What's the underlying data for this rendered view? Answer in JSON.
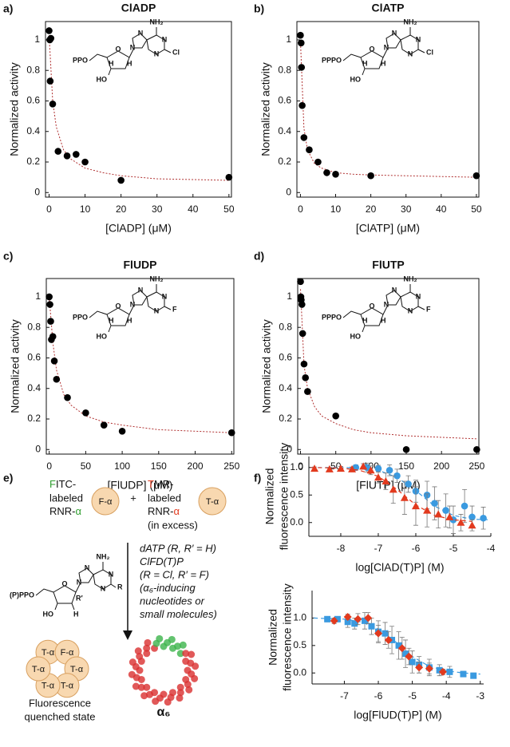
{
  "chart_data": [
    {
      "type": "scatter",
      "panel": "a)",
      "title": "ClADP",
      "xlabel": "[ClADP] (μM)",
      "ylabel": "Normalized activity",
      "xlim": [
        -1,
        50.7
      ],
      "ylim": [
        -0.03,
        1.12
      ],
      "xticks": [
        0,
        10,
        20,
        30,
        40,
        50
      ],
      "yticks": [
        0,
        0.2,
        0.4,
        0.6,
        0.8,
        1
      ],
      "structure": {
        "nh2": "NH₂",
        "n": "N",
        "x": "Cl",
        "phosphate": "PPO",
        "o": "O",
        "ho": "HO",
        "h": "H"
      },
      "series": [
        {
          "color": "#000000",
          "marker": "circle",
          "x": [
            0,
            0.2,
            0.5,
            0.3,
            1,
            2.5,
            5,
            7.5,
            10,
            20,
            50
          ],
          "values": [
            1.06,
            1.0,
            1.01,
            0.73,
            0.58,
            0.27,
            0.24,
            0.25,
            0.2,
            0.08,
            0.1
          ],
          "fit": {
            "color": "#b03030",
            "x": [
              0,
              1,
              2,
              4,
              6,
              10,
              15,
              20,
              30,
              40,
              50
            ],
            "values": [
              1.03,
              0.6,
              0.43,
              0.28,
              0.22,
              0.16,
              0.13,
              0.11,
              0.09,
              0.085,
              0.08
            ]
          }
        }
      ]
    },
    {
      "type": "scatter",
      "panel": "b)",
      "title": "ClATP",
      "xlabel": "[ClATP] (μM)",
      "ylabel": "Normalized activity",
      "xlim": [
        -1,
        50.7
      ],
      "ylim": [
        -0.03,
        1.12
      ],
      "xticks": [
        0,
        10,
        20,
        30,
        40,
        50
      ],
      "yticks": [
        0,
        0.2,
        0.4,
        0.6,
        0.8,
        1
      ],
      "structure": {
        "nh2": "NH₂",
        "n": "N",
        "x": "Cl",
        "phosphate": "PPPO",
        "o": "O",
        "ho": "HO",
        "h": "H"
      },
      "series": [
        {
          "color": "#000000",
          "marker": "circle",
          "x": [
            0,
            0.2,
            0.3,
            0.5,
            1,
            2.5,
            5,
            7.5,
            10,
            20,
            50
          ],
          "values": [
            1.03,
            0.98,
            0.82,
            0.57,
            0.36,
            0.28,
            0.2,
            0.13,
            0.12,
            0.11,
            0.11
          ],
          "fit": {
            "color": "#b03030",
            "x": [
              0,
              1,
              2,
              4,
              6,
              10,
              15,
              20,
              30,
              40,
              50
            ],
            "values": [
              1.0,
              0.42,
              0.28,
              0.19,
              0.16,
              0.13,
              0.12,
              0.115,
              0.11,
              0.105,
              0.1
            ]
          }
        }
      ]
    },
    {
      "type": "scatter",
      "panel": "c)",
      "title": "FlUDP",
      "xlabel": "[FlUDP] (μM)",
      "ylabel": "Normalized activity",
      "xlim": [
        -4,
        253
      ],
      "ylim": [
        -0.03,
        1.12
      ],
      "xticks": [
        0,
        50,
        100,
        150,
        200,
        250
      ],
      "yticks": [
        0,
        0.2,
        0.4,
        0.6,
        0.8,
        1
      ],
      "structure": {
        "nh2": "NH₂",
        "n": "N",
        "x": "F",
        "phosphate": "PPO",
        "o": "O",
        "ho": "HO",
        "h": "H"
      },
      "series": [
        {
          "color": "#000000",
          "marker": "circle",
          "x": [
            0,
            1,
            2,
            3,
            5,
            7,
            10,
            25,
            50,
            75,
            100,
            250
          ],
          "values": [
            1.0,
            0.95,
            0.84,
            0.72,
            0.74,
            0.58,
            0.46,
            0.34,
            0.24,
            0.16,
            0.12,
            0.11
          ],
          "fit": {
            "color": "#b03030",
            "x": [
              0,
              5,
              10,
              20,
              30,
              50,
              75,
              100,
              150,
              200,
              250
            ],
            "values": [
              1.0,
              0.7,
              0.52,
              0.36,
              0.29,
              0.22,
              0.18,
              0.16,
              0.13,
              0.12,
              0.11
            ]
          }
        }
      ]
    },
    {
      "type": "scatter",
      "panel": "d)",
      "title": "FlUTP",
      "xlabel": "[FlUTP] (μM)",
      "ylabel": "Normalized activity",
      "xlim": [
        -4,
        253
      ],
      "ylim": [
        -0.03,
        1.12
      ],
      "xticks": [
        0,
        50,
        100,
        150,
        200,
        250
      ],
      "yticks": [
        0,
        0.2,
        0.4,
        0.6,
        0.8,
        1
      ],
      "structure": {
        "nh2": "NH₂",
        "n": "N",
        "x": "F",
        "phosphate": "PPPO",
        "o": "O",
        "ho": "HO",
        "h": "H"
      },
      "series": [
        {
          "color": "#000000",
          "marker": "circle",
          "x": [
            0,
            0.5,
            1,
            2,
            3,
            5,
            7,
            10,
            50,
            150,
            250
          ],
          "values": [
            1.1,
            1.0,
            0.98,
            0.95,
            0.76,
            0.56,
            0.47,
            0.38,
            0.22,
            0.0,
            0.0
          ],
          "fit": {
            "color": "#b03030",
            "x": [
              0,
              5,
              10,
              20,
              30,
              50,
              75,
              100,
              150,
              200,
              250
            ],
            "values": [
              1.05,
              0.55,
              0.4,
              0.28,
              0.22,
              0.17,
              0.13,
              0.11,
              0.09,
              0.08,
              0.07
            ]
          }
        }
      ]
    },
    {
      "type": "scatter",
      "panel": "f)",
      "xlabel": "log[ClAD(T)P] (M)",
      "ylabel": [
        "Normalized",
        "fluorescence intensity"
      ],
      "xlim": [
        -8.85,
        -4
      ],
      "ylim": [
        -0.25,
        1.2
      ],
      "xticks": [
        -8,
        -7,
        -6,
        -5,
        -4
      ],
      "yticks": [
        {
          "value": 0,
          "label": "0.0"
        },
        0.5,
        {
          "value": 1,
          "label": "1.0"
        }
      ],
      "series": [
        {
          "color": "#3a9ae0",
          "marker": "circle",
          "x": [
            -7.6,
            -7.3,
            -7.0,
            -6.7,
            -6.5,
            -6.2,
            -6.0,
            -5.7,
            -5.5,
            -5.2,
            -5.0,
            -4.7,
            -4.5,
            -4.2
          ],
          "values": [
            1.0,
            1.0,
            0.98,
            0.95,
            0.85,
            0.7,
            0.57,
            0.5,
            0.35,
            0.22,
            0.05,
            0.3,
            0.1,
            0.08
          ],
          "errors": [
            0.05,
            0.08,
            0.06,
            0.1,
            0.12,
            0.15,
            0.2,
            0.25,
            0.3,
            0.3,
            0.25,
            0.3,
            0.2,
            0.2
          ],
          "fit": {
            "color": "#3a9ae0",
            "x": [
              -8.8,
              -8,
              -7.5,
              -7,
              -6.5,
              -6,
              -5.5,
              -5,
              -4.5,
              -4
            ],
            "values": [
              1,
              1,
              0.99,
              0.95,
              0.82,
              0.58,
              0.3,
              0.13,
              0.06,
              0.05
            ]
          }
        },
        {
          "color": "#e23a1e",
          "marker": "triangle",
          "x": [
            -8.7,
            -8.3,
            -8.0,
            -7.7,
            -7.4,
            -7.2,
            -7.0,
            -6.8,
            -6.6,
            -6.3,
            -6.0,
            -5.7,
            -5.4,
            -5.1,
            -4.8,
            -4.5
          ],
          "values": [
            0.98,
            0.97,
            0.98,
            0.97,
            1.02,
            0.95,
            0.82,
            0.75,
            0.6,
            0.45,
            0.3,
            0.22,
            0.15,
            0.1,
            0.0,
            -0.05
          ],
          "errors": [
            0.03,
            0.03,
            0.04,
            0.04,
            0.05,
            0.08,
            0.1,
            0.15,
            0.25,
            0.3,
            0.35,
            0.3,
            0.25,
            0.2,
            0.15,
            0.1
          ],
          "fit": {
            "color": "#e23a1e",
            "x": [
              -8.8,
              -8,
              -7.5,
              -7,
              -6.5,
              -6,
              -5.5,
              -5,
              -4.5
            ],
            "values": [
              1,
              0.99,
              0.95,
              0.84,
              0.6,
              0.32,
              0.13,
              0.05,
              0.02
            ]
          }
        }
      ]
    },
    {
      "type": "scatter",
      "xlabel": "log[FlUD(T)P] (M)",
      "ylabel": [
        "Normalized",
        "fluorescence intensity"
      ],
      "xlim": [
        -7.95,
        -2.9
      ],
      "ylim": [
        -0.2,
        1.5
      ],
      "xticks": [
        -7,
        -6,
        -5,
        -4,
        -3
      ],
      "yticks": [
        {
          "value": 0,
          "label": "0.0"
        },
        0.5,
        {
          "value": 1,
          "label": "1.0"
        }
      ],
      "series": [
        {
          "color": "#3a9ae0",
          "marker": "square",
          "x": [
            -7.5,
            -7.2,
            -6.9,
            -6.7,
            -6.4,
            -6.2,
            -6.0,
            -5.8,
            -5.6,
            -5.4,
            -5.2,
            -5.0,
            -4.8,
            -4.5,
            -4.2,
            -3.9,
            -3.5,
            -3.2
          ],
          "values": [
            0.98,
            0.98,
            0.93,
            0.9,
            0.95,
            0.85,
            0.75,
            0.72,
            0.6,
            0.5,
            0.35,
            0.2,
            0.15,
            0.1,
            0.05,
            0.02,
            -0.02,
            -0.05
          ],
          "errors": [
            0.05,
            0.05,
            0.1,
            0.1,
            0.15,
            0.15,
            0.2,
            0.2,
            0.25,
            0.25,
            0.25,
            0.2,
            0.15,
            0.15,
            0.1,
            0.1,
            0.05,
            0.05
          ],
          "fit": {
            "color": "#3a9ae0",
            "x": [
              -7.9,
              -7,
              -6.5,
              -6,
              -5.5,
              -5,
              -4.5,
              -4,
              -3.5,
              -3
            ],
            "values": [
              1,
              0.98,
              0.93,
              0.8,
              0.57,
              0.3,
              0.12,
              0.04,
              0.0,
              -0.02
            ]
          }
        },
        {
          "color": "#e23a1e",
          "marker": "diamond",
          "x": [
            -7.3,
            -6.9,
            -6.6,
            -6.3,
            -6.0,
            -5.7,
            -5.3,
            -5.1,
            -4.8,
            -4.5,
            -4.1
          ],
          "values": [
            0.95,
            1.02,
            0.98,
            1.0,
            0.72,
            0.6,
            0.45,
            0.3,
            0.1,
            0.08,
            0.02
          ],
          "errors": [
            0.05,
            0.05,
            0.1,
            0.1,
            0.15,
            0.15,
            0.2,
            0.15,
            0.1,
            0.1,
            0.05
          ]
        }
      ]
    }
  ],
  "diagram": {
    "panel": "e)",
    "fitc": [
      "F",
      "ITC-"
    ],
    "labeled": "labeled",
    "rnr": [
      "RNR-",
      "α"
    ],
    "f_alpha": "F-α",
    "plus": "+",
    "tmr": [
      "T",
      "MR-"
    ],
    "excess": "(in excess)",
    "t_alpha": "T-α",
    "conditions": [
      "dATP (R, R′ = H)",
      "ClFD(T)P",
      "(R = Cl, R′ = F)",
      "(α₆-inducing",
      "nucleotides or",
      "small molecules)"
    ],
    "structure": {
      "phosphate": "(P)PPO",
      "ho": "HO",
      "nh2": "NH₂",
      "n": "N",
      "r": "R",
      "r_prime": "R′",
      "h": "H",
      "o": "O"
    },
    "state": [
      "Fluorescence",
      "quenched state"
    ],
    "hexamer": "α₆"
  }
}
